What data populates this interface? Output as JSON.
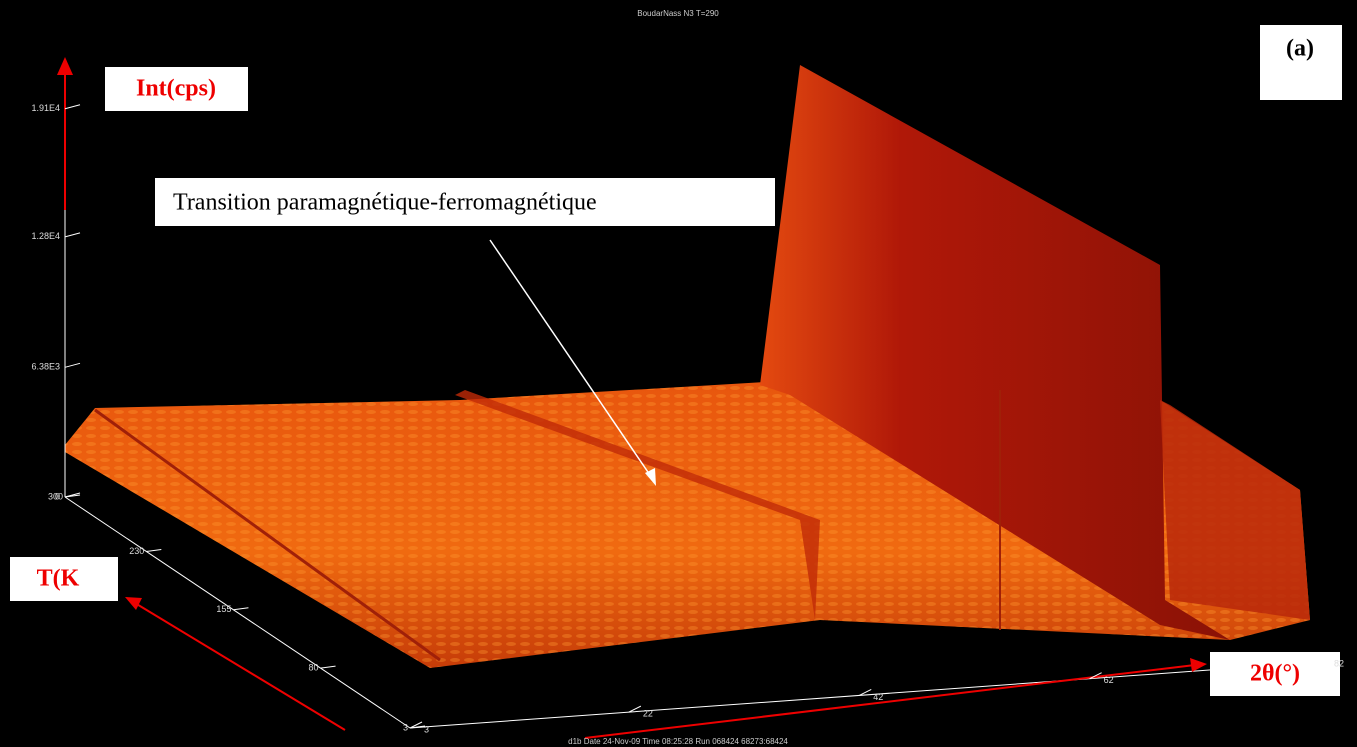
{
  "chart_data": {
    "type": "surface",
    "title": "BoudarNass  N3 T=290",
    "footer": "d1b Date 24-Nov-09 Time 08:25:28 Run 068424 68273:68424",
    "panel_label": "(a)",
    "z_label": "Int(cps)",
    "y_label": "T(K",
    "x_label": "2θ(°)",
    "annotation": "Transition paramagnétique-ferromagnétique",
    "zlim": [
      0,
      21500
    ],
    "zticks": [
      0,
      {
        "value": 6380,
        "label": "6.38E3"
      },
      {
        "value": 12800,
        "label": "1.28E4"
      },
      {
        "value": 19100,
        "label": "1.91E4"
      }
    ],
    "ylim": [
      3,
      300
    ],
    "yticks": [
      3,
      80,
      155,
      230,
      300
    ],
    "xlim": [
      3,
      82
    ],
    "xticks": [
      3,
      22,
      42,
      62,
      82
    ]
  }
}
